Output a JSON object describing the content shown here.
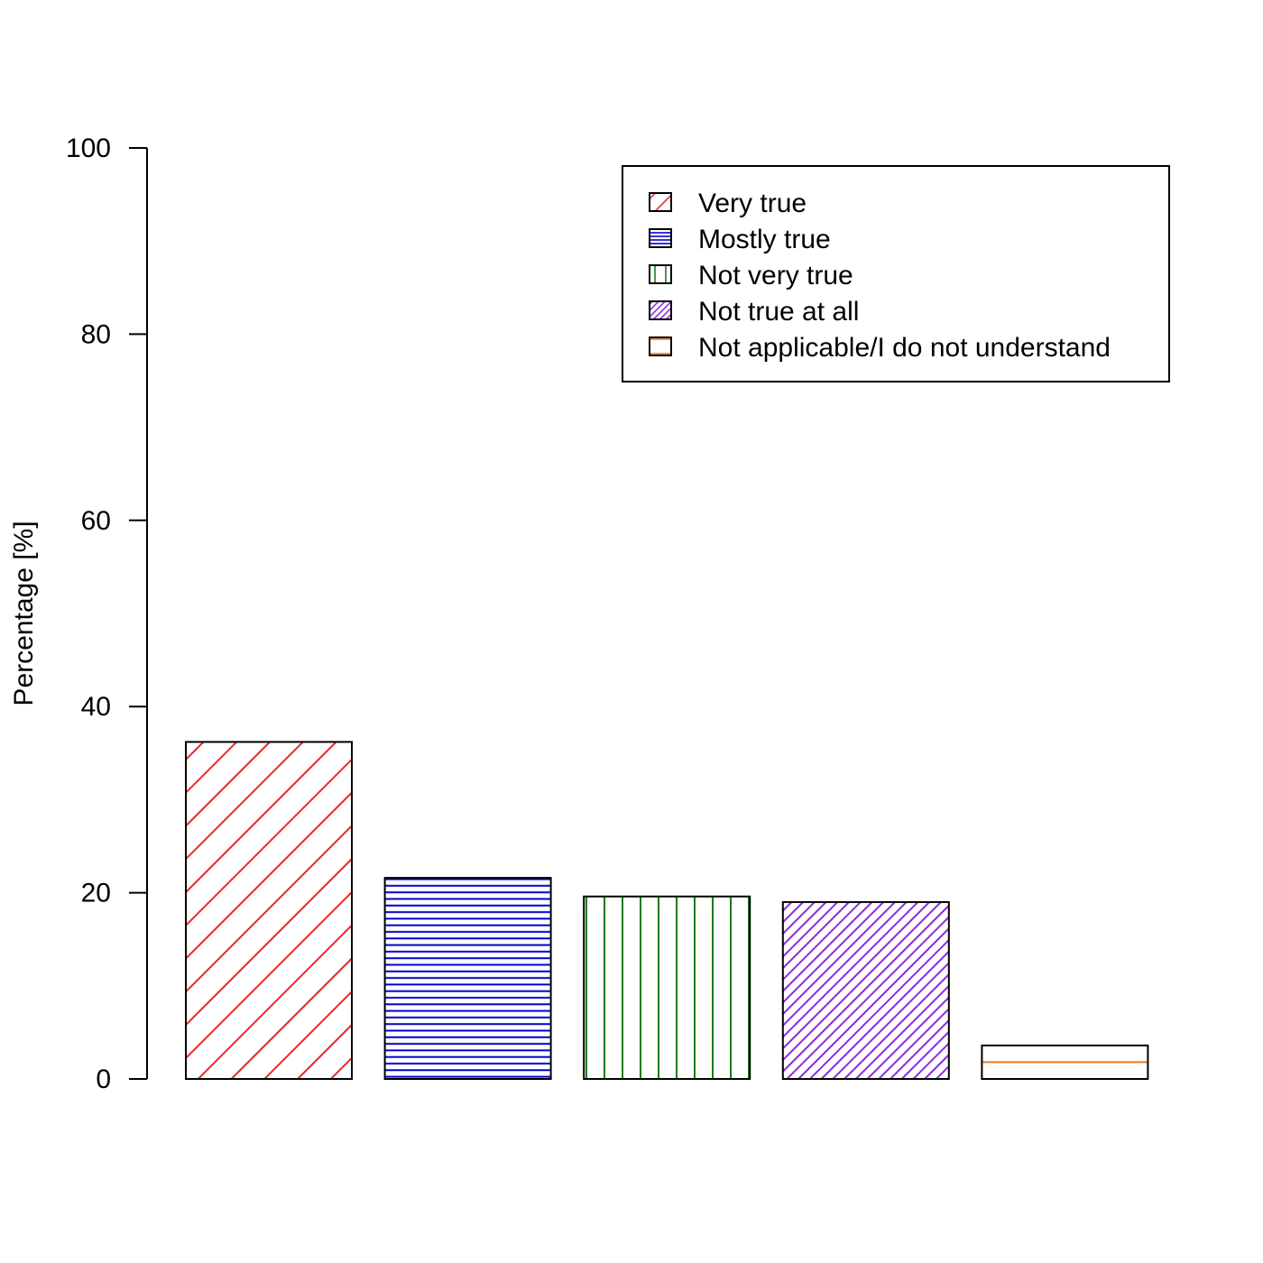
{
  "chart_data": {
    "type": "bar",
    "title": "",
    "xlabel": "",
    "ylabel": "Percentage [%]",
    "ylim": [
      0,
      100
    ],
    "yticks": [
      0,
      20,
      40,
      60,
      80,
      100
    ],
    "grid": false,
    "legend_position": "top-right",
    "series": [
      {
        "name": "Very true",
        "value": 36.2,
        "color": "#E8262B",
        "pattern": "diagonal-45"
      },
      {
        "name": "Mostly true",
        "value": 21.6,
        "color": "#0000CC",
        "pattern": "horizontal"
      },
      {
        "name": "Not very true",
        "value": 19.6,
        "color": "#1E7B1E",
        "pattern": "vertical"
      },
      {
        "name": "Not true at all",
        "value": 19.0,
        "color": "#8A2BE2",
        "pattern": "diagonal-dense"
      },
      {
        "name": "Not applicable/I do not understand",
        "value": 3.6,
        "color": "#E8781E",
        "pattern": "horizontal-sparse"
      }
    ]
  }
}
